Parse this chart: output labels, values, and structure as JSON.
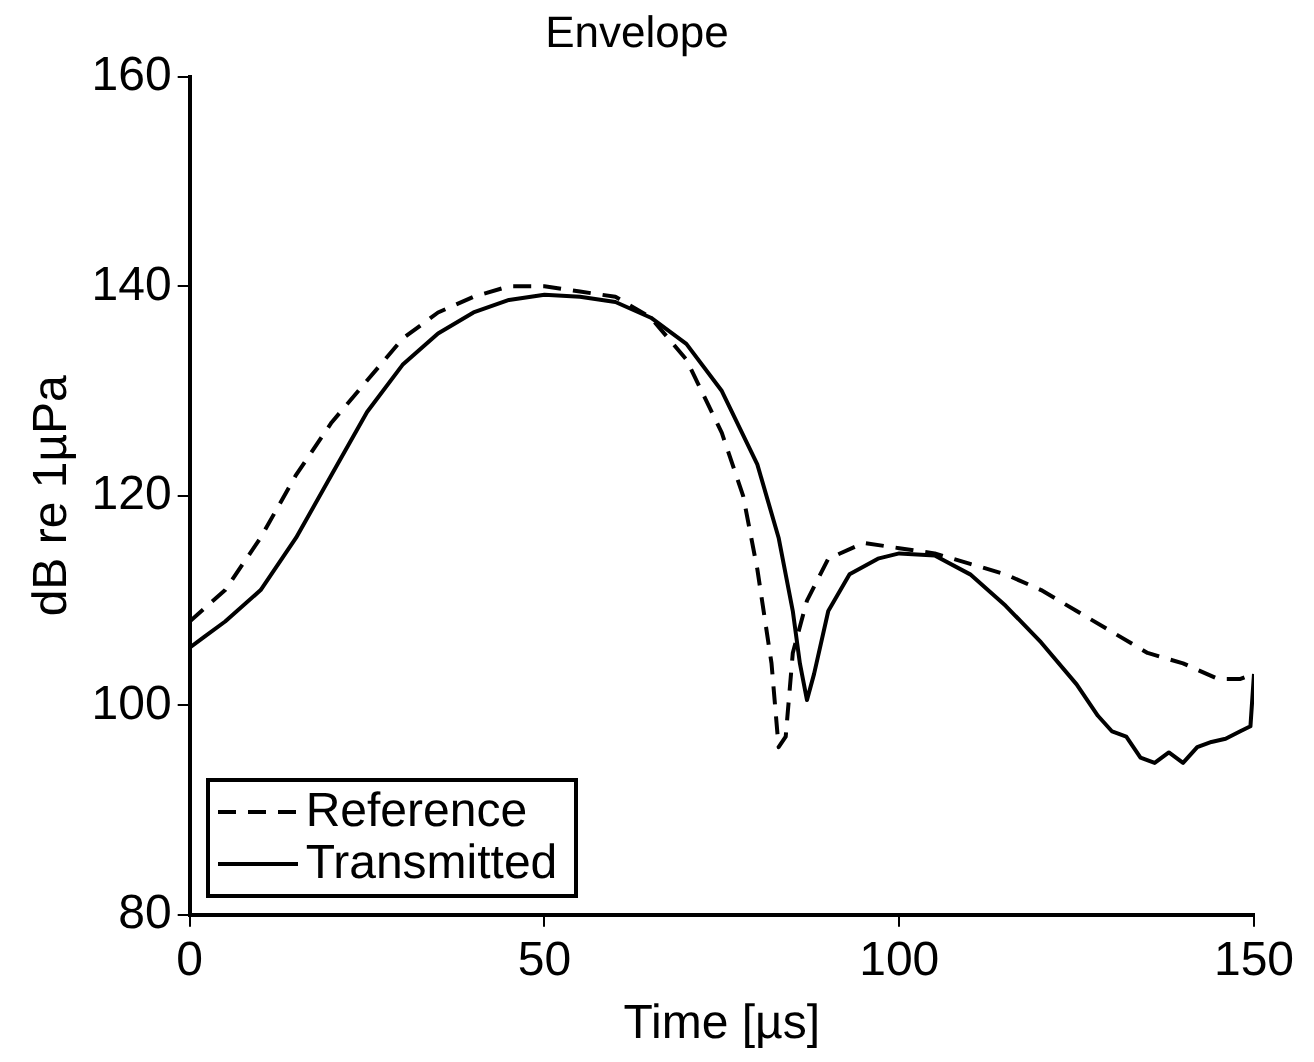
{
  "chart_data": {
    "type": "line",
    "title": "Envelope",
    "xlabel": "Time [µs]",
    "ylabel": "dB re 1µPa",
    "xlim": [
      0,
      150
    ],
    "xticks": [
      0,
      50,
      100,
      150
    ],
    "ylim": [
      80,
      160
    ],
    "yticks": [
      80,
      100,
      120,
      140,
      160
    ],
    "grid": false,
    "legend": "bottom left",
    "marker": "none",
    "series": [
      {
        "name": "Reference",
        "color": "#000000",
        "line_style": "dashed",
        "x": [
          0,
          5,
          10,
          15,
          20,
          25,
          30,
          35,
          40,
          45,
          50,
          55,
          60,
          65,
          70,
          75,
          78,
          80,
          82,
          83,
          84,
          85,
          87,
          90,
          95,
          100,
          105,
          110,
          115,
          120,
          125,
          130,
          135,
          140,
          145,
          148,
          150
        ],
        "values": [
          108,
          111,
          116,
          122,
          127,
          131,
          135,
          137.5,
          139,
          140,
          140,
          139.5,
          139,
          137,
          133,
          126,
          120,
          113,
          104,
          96,
          97,
          105,
          110,
          114,
          115.5,
          115,
          114.5,
          113.5,
          112.5,
          111,
          109,
          107,
          105,
          104,
          102.5,
          102.5,
          103
        ]
      },
      {
        "name": "Transmitted",
        "color": "#000000",
        "line_style": "solid",
        "x": [
          0,
          2,
          5,
          10,
          15,
          20,
          25,
          30,
          35,
          40,
          45,
          50,
          55,
          60,
          65,
          70,
          75,
          80,
          83,
          85,
          86,
          87,
          88,
          90,
          93,
          97,
          100,
          105,
          110,
          115,
          120,
          125,
          128,
          130,
          132,
          134,
          136,
          138,
          140,
          142,
          144,
          146,
          148,
          149.5,
          150
        ],
        "values": [
          105.5,
          106.5,
          108,
          111,
          116,
          122,
          128,
          132.5,
          135.5,
          137.5,
          138.7,
          139.2,
          139,
          138.5,
          137,
          134.5,
          130,
          123,
          116,
          109,
          104,
          100.5,
          103,
          109,
          112.5,
          114,
          114.5,
          114.3,
          112.5,
          109.5,
          106,
          102,
          99,
          97.5,
          97,
          95,
          94.5,
          95.5,
          94.5,
          96,
          96.5,
          96.8,
          97.5,
          98,
          103
        ]
      }
    ]
  }
}
